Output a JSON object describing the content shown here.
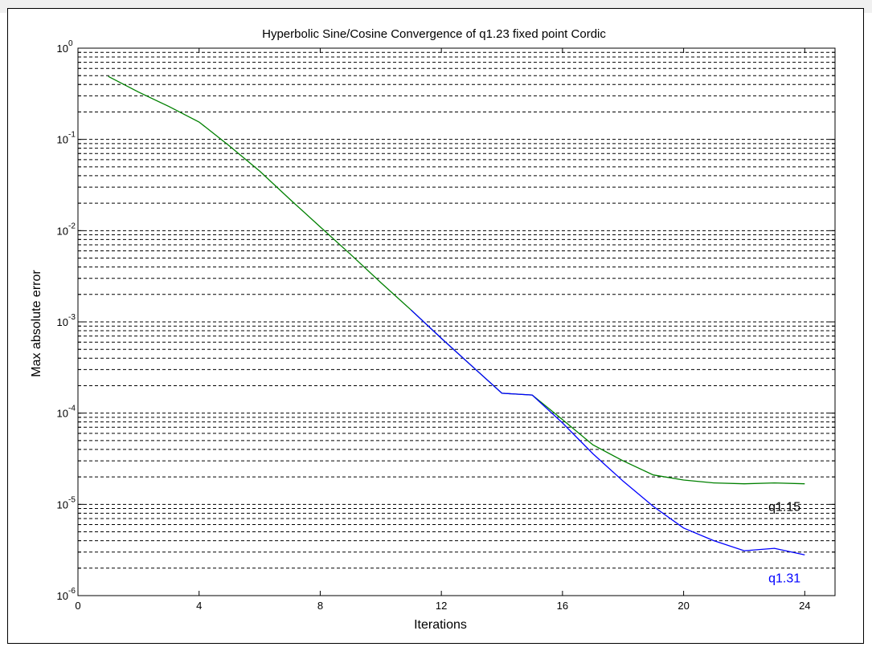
{
  "chart_data": {
    "type": "line",
    "title": "Hyperbolic Sine/Cosine Convergence of q1.23 fixed point Cordic",
    "xlabel": "Iterations",
    "ylabel": "Max absolute error",
    "xlim": [
      0,
      25
    ],
    "ylim": [
      1e-06,
      1
    ],
    "yscale": "log",
    "grid": true,
    "grid_style": "dashed",
    "x_ticks": [
      0,
      4,
      8,
      12,
      16,
      20,
      24
    ],
    "y_ticks": [
      {
        "base": "10",
        "exp": "0",
        "value": 1
      },
      {
        "base": "10",
        "exp": "-1",
        "value": 0.1
      },
      {
        "base": "10",
        "exp": "-2",
        "value": 0.01
      },
      {
        "base": "10",
        "exp": "-3",
        "value": 0.001
      },
      {
        "base": "10",
        "exp": "-4",
        "value": 0.0001
      },
      {
        "base": "10",
        "exp": "-5",
        "value": 1e-05
      },
      {
        "base": "10",
        "exp": "-6",
        "value": 1e-06
      }
    ],
    "series": [
      {
        "name": "q1.15",
        "color": "#008000",
        "x": [
          1,
          2,
          3,
          4,
          5,
          6,
          7,
          8,
          9,
          10,
          11,
          12,
          13,
          14,
          15,
          16,
          17,
          18,
          19,
          20,
          21,
          22,
          23,
          24
        ],
        "y": [
          0.49,
          0.33,
          0.23,
          0.155,
          0.085,
          0.045,
          0.022,
          0.011,
          0.0055,
          0.0027,
          0.00135,
          0.00066,
          0.00033,
          0.000165,
          0.000158,
          8.5e-05,
          4.5e-05,
          3e-05,
          2.1e-05,
          1.85e-05,
          1.72e-05,
          1.68e-05,
          1.72e-05,
          1.68e-05
        ]
      },
      {
        "name": "q1.31",
        "color": "#0000ff",
        "x": [
          11,
          12,
          13,
          14,
          15,
          16,
          17,
          18,
          19,
          20,
          21,
          22,
          23,
          24
        ],
        "y": [
          0.00135,
          0.00066,
          0.00033,
          0.000165,
          0.000158,
          7.8e-05,
          3.6e-05,
          1.8e-05,
          9.5e-06,
          5.5e-06,
          4e-06,
          3.1e-06,
          3.3e-06,
          2.8e-06
        ]
      }
    ],
    "annotations": [
      {
        "text": "q1.15",
        "x": 22.8,
        "y": 8.5e-06,
        "color": "#000000"
      },
      {
        "text": "q1.31",
        "x": 22.8,
        "y": 1.4e-06,
        "color": "#0000ff"
      }
    ]
  }
}
